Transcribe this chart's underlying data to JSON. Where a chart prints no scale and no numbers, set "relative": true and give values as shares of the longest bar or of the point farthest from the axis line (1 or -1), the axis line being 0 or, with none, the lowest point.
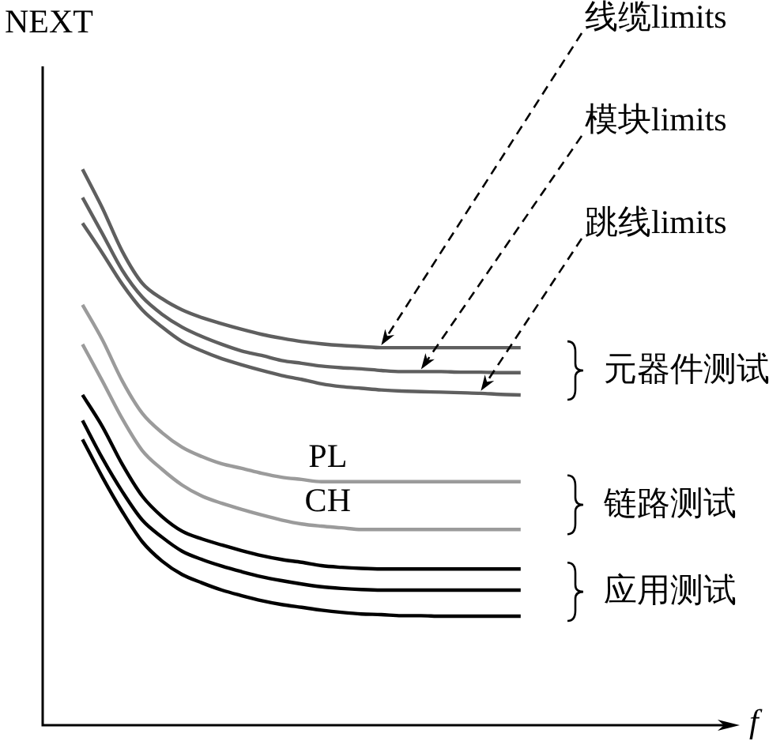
{
  "chart_data": {
    "type": "line",
    "relative": true,
    "xlabel": "f",
    "ylabel": "NEXT",
    "tick_labels": false,
    "marker": "none",
    "line_style": "solid",
    "annotations": [
      "线缆limits",
      "模块limits",
      "跳线limits",
      "元器件测试",
      "链路测试",
      "应用测试"
    ],
    "categories": [
      null,
      null,
      null,
      null,
      null,
      null,
      null,
      null,
      null,
      null,
      null,
      null,
      null,
      null,
      null,
      null,
      null,
      null,
      null,
      null,
      null,
      null,
      null,
      null,
      null,
      null,
      null,
      null,
      null,
      null,
      null,
      null,
      null,
      null,
      null,
      null
    ],
    "series": [
      {
        "color": "#5f5f5f",
        "values": [
          null,
          null,
          1.0,
          0.93,
          0.852,
          0.795,
          0.767,
          0.747,
          0.733,
          0.722,
          0.712,
          0.703,
          0.696,
          0.69,
          0.686,
          0.683,
          0.681,
          0.679,
          0.679,
          0.679,
          0.679,
          0.679,
          0.679,
          0.679,
          0.679,
          null,
          null,
          null,
          null,
          null,
          null,
          null,
          null,
          null,
          null,
          null
        ]
      },
      {
        "color": "#5f5f5f",
        "values": [
          null,
          null,
          0.949,
          0.884,
          0.818,
          0.77,
          0.739,
          0.716,
          0.699,
          0.685,
          0.673,
          0.665,
          0.656,
          0.651,
          0.646,
          0.643,
          0.641,
          0.638,
          0.636,
          0.636,
          0.636,
          0.635,
          0.635,
          0.634,
          0.634,
          null,
          null,
          null,
          null,
          null,
          null,
          null,
          null,
          null,
          null,
          null
        ]
      },
      {
        "color": "#5f5f5f",
        "values": [
          null,
          null,
          0.903,
          0.849,
          0.793,
          0.747,
          0.716,
          0.69,
          0.673,
          0.659,
          0.648,
          0.638,
          0.629,
          0.622,
          0.614,
          0.609,
          0.606,
          0.603,
          0.601,
          0.6,
          0.599,
          0.598,
          0.597,
          0.595,
          0.594,
          null,
          null,
          null,
          null,
          null,
          null,
          null,
          null,
          null,
          null,
          null
        ]
      },
      {
        "name": "PL",
        "color": "#9b9b9b",
        "values": [
          null,
          null,
          0.756,
          0.693,
          0.619,
          0.561,
          0.526,
          0.5,
          0.483,
          0.47,
          0.462,
          0.453,
          0.446,
          0.442,
          0.438,
          0.438,
          0.438,
          0.438,
          0.438,
          0.438,
          0.438,
          0.438,
          0.438,
          0.438,
          0.438,
          null,
          null,
          null,
          null,
          null,
          null,
          null,
          null,
          null,
          null,
          null
        ]
      },
      {
        "name": "CH",
        "color": "#9b9b9b",
        "values": [
          null,
          null,
          0.685,
          0.619,
          0.551,
          0.494,
          0.46,
          0.432,
          0.412,
          0.399,
          0.388,
          0.378,
          0.369,
          0.362,
          0.358,
          0.355,
          0.352,
          0.352,
          0.352,
          0.352,
          0.352,
          0.352,
          0.352,
          0.352,
          0.352,
          null,
          null,
          null,
          null,
          null,
          null,
          null,
          null,
          null,
          null,
          null
        ]
      },
      {
        "color": "#000000",
        "values": [
          null,
          null,
          0.594,
          0.537,
          0.469,
          0.412,
          0.375,
          0.349,
          0.335,
          0.324,
          0.314,
          0.305,
          0.298,
          0.293,
          0.287,
          0.284,
          0.282,
          0.281,
          0.281,
          0.281,
          0.281,
          0.281,
          0.281,
          0.281,
          0.281,
          null,
          null,
          null,
          null,
          null,
          null,
          null,
          null,
          null,
          null,
          null
        ]
      },
      {
        "color": "#000000",
        "values": [
          null,
          null,
          0.548,
          0.48,
          0.42,
          0.369,
          0.338,
          0.313,
          0.298,
          0.286,
          0.276,
          0.267,
          0.26,
          0.254,
          0.249,
          0.246,
          0.244,
          0.243,
          0.243,
          0.243,
          0.243,
          0.243,
          0.243,
          0.243,
          0.243,
          null,
          null,
          null,
          null,
          null,
          null,
          null,
          null,
          null,
          null,
          null
        ]
      },
      {
        "color": "#000000",
        "values": [
          null,
          null,
          0.514,
          0.446,
          0.384,
          0.33,
          0.295,
          0.271,
          0.256,
          0.243,
          0.233,
          0.224,
          0.217,
          0.212,
          0.207,
          0.203,
          0.2,
          0.199,
          0.197,
          0.197,
          0.196,
          0.196,
          0.196,
          0.196,
          0.196,
          null,
          null,
          null,
          null,
          null,
          null,
          null,
          null,
          null,
          null,
          null
        ]
      }
    ]
  }
}
